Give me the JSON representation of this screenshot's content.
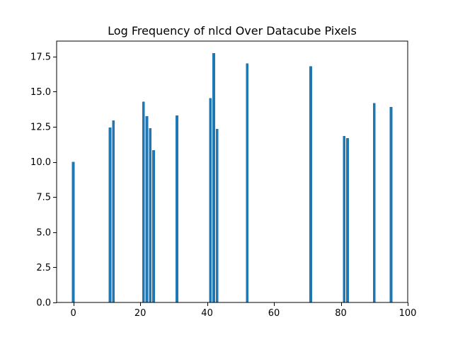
{
  "chart_data": {
    "type": "bar",
    "title": "Log Frequency of nlcd Over Datacube Pixels",
    "xlabel": "",
    "ylabel": "",
    "xlim": [
      -5,
      100
    ],
    "ylim": [
      0,
      18.6
    ],
    "bar_width": 0.8,
    "color": "#1f77b4",
    "grid": false,
    "x": [
      0,
      11,
      12,
      21,
      22,
      23,
      24,
      31,
      41,
      42,
      43,
      52,
      71,
      81,
      82,
      90,
      95
    ],
    "values": [
      10.0,
      12.45,
      12.95,
      14.3,
      13.25,
      12.4,
      10.85,
      13.3,
      14.55,
      17.75,
      12.35,
      17.0,
      16.8,
      11.85,
      11.7,
      14.2,
      13.9
    ],
    "xticks": [
      0,
      20,
      40,
      60,
      80,
      100
    ],
    "xtick_labels": [
      "0",
      "20",
      "40",
      "60",
      "80",
      "100"
    ],
    "yticks": [
      0,
      2.5,
      5,
      7.5,
      10,
      12.5,
      15,
      17.5
    ],
    "ytick_labels": [
      "0.0",
      "2.5",
      "5.0",
      "7.5",
      "10.0",
      "12.5",
      "15.0",
      "17.5"
    ]
  }
}
